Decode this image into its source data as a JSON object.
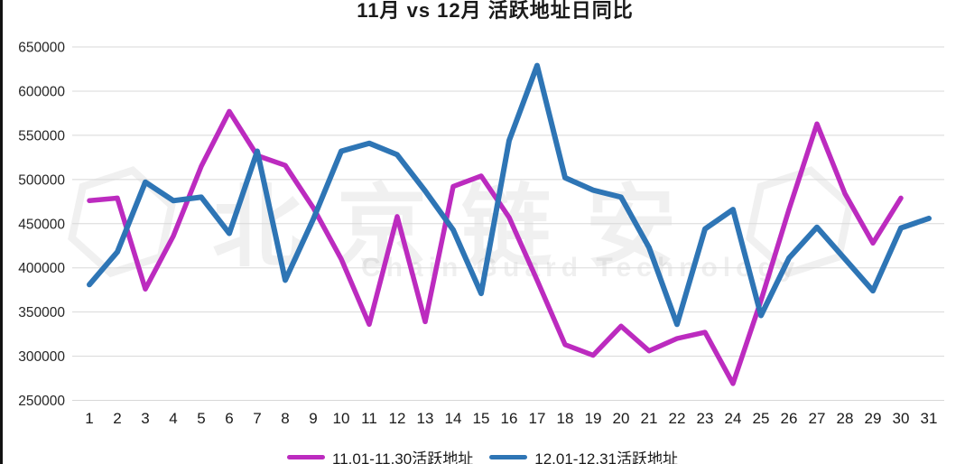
{
  "title": "11月 vs 12月 活跃地址日同比",
  "watermark": {
    "cn": "北京链安",
    "en": "Chain Guard Technology"
  },
  "legend": [
    {
      "label": "11.01-11.30活跃地址",
      "color": "#BC2BBF"
    },
    {
      "label": "12.01-12.31活跃地址",
      "color": "#2E75B5"
    }
  ],
  "chart_data": {
    "type": "line",
    "title": "11月 vs 12月 活跃地址日同比",
    "x": [
      1,
      2,
      3,
      4,
      5,
      6,
      7,
      8,
      9,
      10,
      11,
      12,
      13,
      14,
      15,
      16,
      17,
      18,
      19,
      20,
      21,
      22,
      23,
      24,
      25,
      26,
      27,
      28,
      29,
      30,
      31
    ],
    "series": [
      {
        "name": "11.01-11.30活跃地址",
        "color": "#BC2BBF",
        "values": [
          476000,
          479000,
          376000,
          436000,
          515000,
          577000,
          527000,
          516000,
          468000,
          410000,
          336000,
          458000,
          339000,
          492000,
          504000,
          457000,
          386000,
          313000,
          301000,
          334000,
          306000,
          320000,
          327000,
          269000,
          363000,
          466000,
          563000,
          484000,
          428000,
          479000
        ]
      },
      {
        "name": "12.01-12.31活跃地址",
        "color": "#2E75B5",
        "values": [
          381000,
          418000,
          497000,
          476000,
          480000,
          439000,
          532000,
          386000,
          455000,
          532000,
          541000,
          528000,
          487000,
          443000,
          371000,
          544000,
          629000,
          502000,
          488000,
          480000,
          423000,
          336000,
          444000,
          466000,
          346000,
          411000,
          446000,
          410000,
          374000,
          445000,
          456000
        ]
      }
    ],
    "xlabel": "",
    "ylabel": "",
    "ylim": [
      250000,
      650000
    ],
    "yticks": [
      250000,
      300000,
      350000,
      400000,
      450000,
      500000,
      550000,
      600000,
      650000
    ],
    "grid": "horizontal",
    "grid_color": "#D8D8D8",
    "legend_position": "bottom"
  }
}
